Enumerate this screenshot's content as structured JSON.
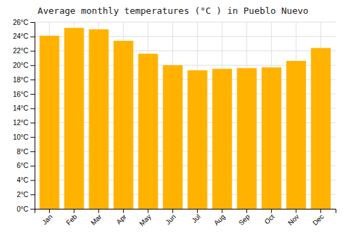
{
  "chart_data": {
    "type": "bar",
    "title": "Average monthly temperatures (°C ) in Pueblo Nuevo",
    "categories": [
      "Jan",
      "Feb",
      "Mar",
      "Apr",
      "May",
      "Jun",
      "Jul",
      "Aug",
      "Sep",
      "Oct",
      "Nov",
      "Dec"
    ],
    "values": [
      24.1,
      25.2,
      25.0,
      23.4,
      21.6,
      20.0,
      19.3,
      19.5,
      19.6,
      19.7,
      20.6,
      22.4
    ],
    "color": "#FFB300",
    "ylim": [
      0,
      26
    ],
    "yticks": [
      {
        "value": 0,
        "label": "0°C"
      },
      {
        "value": 2,
        "label": "2°C"
      },
      {
        "value": 4,
        "label": "4°C"
      },
      {
        "value": 6,
        "label": "6°C"
      },
      {
        "value": 8,
        "label": "8°C"
      },
      {
        "value": 10,
        "label": "10°C"
      },
      {
        "value": 12,
        "label": "12°C"
      },
      {
        "value": 14,
        "label": "14°C"
      },
      {
        "value": 16,
        "label": "16°C"
      },
      {
        "value": 18,
        "label": "18°C"
      },
      {
        "value": 20,
        "label": "20°C"
      },
      {
        "value": 22,
        "label": "22°C"
      },
      {
        "value": 24,
        "label": "24°C"
      },
      {
        "value": 26,
        "label": "26°C"
      }
    ],
    "grid": true
  }
}
